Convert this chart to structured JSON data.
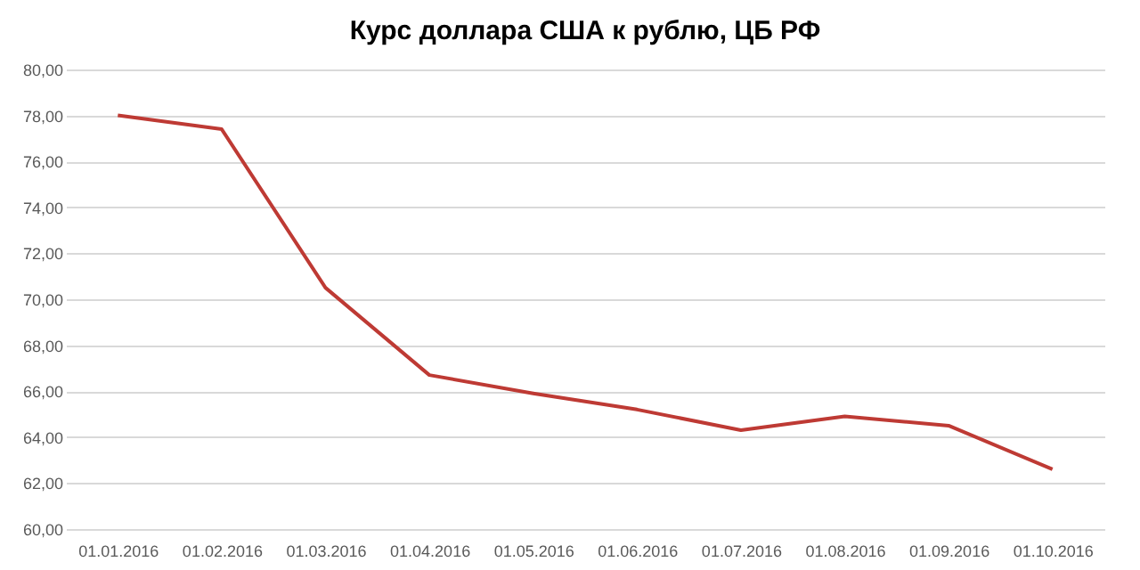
{
  "chart_data": {
    "type": "line",
    "title": "Курс доллара США к рублю, ЦБ РФ",
    "categories": [
      "01.01.2016",
      "01.02.2016",
      "01.03.2016",
      "01.04.2016",
      "01.05.2016",
      "01.06.2016",
      "01.07.2016",
      "01.08.2016",
      "01.09.2016",
      "01.10.2016"
    ],
    "series": [
      {
        "color": "#be3a34",
        "values": [
          78.0,
          77.4,
          70.5,
          66.7,
          65.9,
          65.2,
          64.3,
          64.9,
          64.5,
          62.6
        ]
      }
    ],
    "ylim": [
      60,
      80
    ],
    "yticks": [
      {
        "value": 60,
        "label": "60,00"
      },
      {
        "value": 62,
        "label": "62,00"
      },
      {
        "value": 64,
        "label": "64,00"
      },
      {
        "value": 66,
        "label": "66,00"
      },
      {
        "value": 68,
        "label": "68,00"
      },
      {
        "value": 70,
        "label": "70,00"
      },
      {
        "value": 72,
        "label": "72,00"
      },
      {
        "value": 74,
        "label": "74,00"
      },
      {
        "value": 76,
        "label": "76,00"
      },
      {
        "value": 78,
        "label": "78,00"
      },
      {
        "value": 80,
        "label": "80,00"
      }
    ],
    "grid": "y",
    "marker": "none",
    "line_style": "solid"
  }
}
